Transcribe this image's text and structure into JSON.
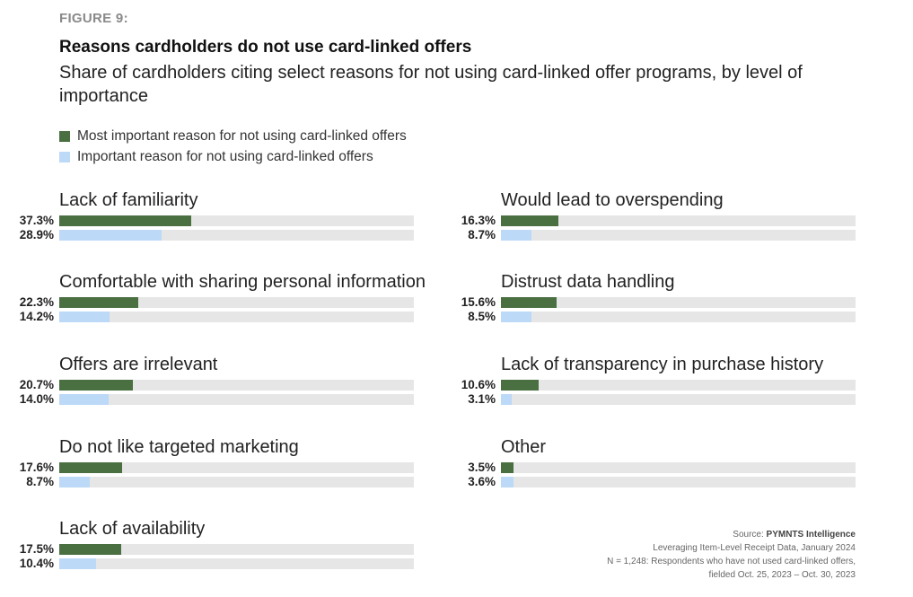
{
  "header": {
    "figure_label": "FIGURE 9:",
    "title": "Reasons cardholders do not use card-linked offers",
    "subtitle": "Share of cardholders citing select reasons for not using card-linked offer programs, by level of importance"
  },
  "legend": [
    {
      "label": "Most important reason for not using card-linked offers",
      "color": "#4a7042"
    },
    {
      "label": "Important reason for not using card-linked offers",
      "color": "#bcd9f7"
    }
  ],
  "source": {
    "prefix": "Source: ",
    "name": "PYMNTS Intelligence",
    "line2": "Leveraging Item-Level Receipt Data, January 2024",
    "line3": "N = 1,248: Respondents who have not used card-linked offers,",
    "line4": "fielded Oct. 25, 2023 – Oct. 30, 2023"
  },
  "chart_data": {
    "type": "bar",
    "title": "Reasons cardholders do not use card-linked offers",
    "xlim": [
      0,
      100
    ],
    "series": [
      {
        "name": "Most important reason for not using card-linked offers",
        "color": "#4a7042"
      },
      {
        "name": "Important reason for not using card-linked offers",
        "color": "#bcd9f7"
      }
    ],
    "categories": [
      {
        "label": "Lack of familiarity",
        "values": [
          37.3,
          28.9
        ],
        "labels": [
          "37.3%",
          "28.9%"
        ]
      },
      {
        "label": "Comfortable with sharing personal information",
        "values": [
          22.3,
          14.2
        ],
        "labels": [
          "22.3%",
          "14.2%"
        ]
      },
      {
        "label": "Offers are irrelevant",
        "values": [
          20.7,
          14.0
        ],
        "labels": [
          "20.7%",
          "14.0%"
        ]
      },
      {
        "label": "Do not like targeted marketing",
        "values": [
          17.6,
          8.7
        ],
        "labels": [
          "17.6%",
          "8.7%"
        ]
      },
      {
        "label": "Lack of availability",
        "values": [
          17.5,
          10.4
        ],
        "labels": [
          "17.5%",
          "10.4%"
        ]
      },
      {
        "label": "Would lead to overspending",
        "values": [
          16.3,
          8.7
        ],
        "labels": [
          "16.3%",
          "8.7%"
        ]
      },
      {
        "label": "Distrust data handling",
        "values": [
          15.6,
          8.5
        ],
        "labels": [
          "15.6%",
          "8.5%"
        ]
      },
      {
        "label": "Lack of transparency in purchase history",
        "values": [
          10.6,
          3.1
        ],
        "labels": [
          "10.6%",
          "3.1%"
        ]
      },
      {
        "label": "Other",
        "values": [
          3.5,
          3.6
        ],
        "labels": [
          "3.5%",
          "3.6%"
        ]
      }
    ]
  }
}
